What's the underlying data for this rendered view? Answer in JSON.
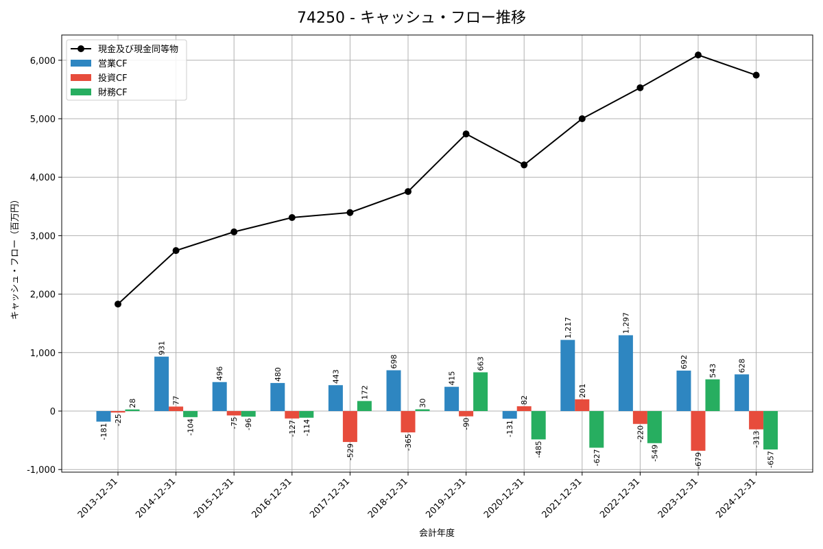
{
  "chart_data": {
    "type": "bar",
    "title": "74250 - キャッシュ・フロー推移",
    "xlabel": "会計年度",
    "ylabel": "キャッシュ・フロー（百万円）",
    "ylim": [
      -1000,
      6000
    ],
    "yticks": [
      -1000,
      0,
      1000,
      2000,
      3000,
      4000,
      5000,
      6000
    ],
    "ytick_labels": [
      "-1,000",
      "0",
      "1,000",
      "2,000",
      "3,000",
      "4,000",
      "5,000",
      "6,000"
    ],
    "grid": true,
    "legend_position": "top-left",
    "categories": [
      "2013-12-31",
      "2014-12-31",
      "2015-12-31",
      "2016-12-31",
      "2017-12-31",
      "2018-12-31",
      "2019-12-31",
      "2020-12-31",
      "2021-12-31",
      "2022-12-31",
      "2023-12-31",
      "2024-12-31"
    ],
    "series": [
      {
        "name": "営業CF",
        "kind": "bar",
        "color": "#2e86c1",
        "values": [
          -181,
          931,
          496,
          480,
          443,
          698,
          415,
          -131,
          1217,
          1297,
          692,
          628
        ],
        "labels": [
          "-181",
          "931",
          "496",
          "480",
          "443",
          "698",
          "415",
          "-131",
          "1,217",
          "1,297",
          "692",
          "628"
        ]
      },
      {
        "name": "投資CF",
        "kind": "bar",
        "color": "#e74c3c",
        "values": [
          -25,
          77,
          -75,
          -127,
          -529,
          -365,
          -90,
          82,
          201,
          -220,
          -679,
          -313
        ],
        "labels": [
          "-25",
          "77",
          "-75",
          "-127",
          "-529",
          "-365",
          "-90",
          "82",
          "201",
          "-220",
          "-679",
          "-313"
        ]
      },
      {
        "name": "財務CF",
        "kind": "bar",
        "color": "#27ae60",
        "values": [
          28,
          -104,
          -96,
          -114,
          172,
          30,
          663,
          -485,
          -627,
          -549,
          543,
          -657
        ],
        "labels": [
          "28",
          "-104",
          "-96",
          "-114",
          "172",
          "30",
          "663",
          "-485",
          "-627",
          "-549",
          "543",
          "-657"
        ]
      },
      {
        "name": "現金及び現金同等物",
        "kind": "line",
        "color": "#000000",
        "values": [
          1830,
          2745,
          3065,
          3310,
          3395,
          3755,
          4740,
          4210,
          5000,
          5530,
          6090,
          5745
        ]
      }
    ]
  }
}
